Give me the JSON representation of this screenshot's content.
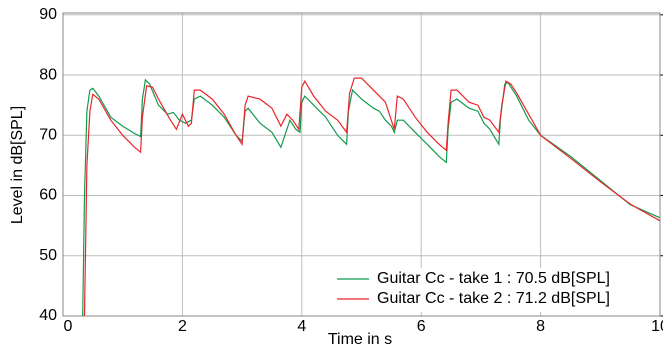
{
  "chart_data": {
    "type": "line",
    "x_label": "Time in s",
    "y_label": "Level in dB[SPL]",
    "xlim": [
      0,
      10
    ],
    "ylim": [
      40,
      90.3
    ],
    "xticks": [
      0,
      2,
      4,
      6,
      8,
      10
    ],
    "yticks": [
      40,
      50,
      60,
      70,
      80,
      90
    ],
    "grid": true,
    "legend": "lower right",
    "series": [
      {
        "name": "Guitar Cc - take 1 : 70.5 dB[SPL]",
        "color": "#139a4e",
        "x": [
          0.33,
          0.36,
          0.4,
          0.45,
          0.5,
          0.6,
          0.8,
          1.0,
          1.2,
          1.3,
          1.33,
          1.38,
          1.45,
          1.6,
          1.75,
          1.85,
          1.95,
          2.05,
          2.15,
          2.2,
          2.3,
          2.5,
          2.7,
          2.9,
          3.0,
          3.05,
          3.1,
          3.3,
          3.5,
          3.65,
          3.75,
          3.8,
          3.9,
          3.97,
          4.0,
          4.05,
          4.2,
          4.4,
          4.6,
          4.7,
          4.75,
          4.78,
          4.85,
          5.0,
          5.2,
          5.3,
          5.4,
          5.5,
          5.55,
          5.6,
          5.7,
          5.9,
          6.1,
          6.3,
          6.42,
          6.45,
          6.5,
          6.6,
          6.8,
          6.95,
          7.05,
          7.15,
          7.3,
          7.33,
          7.4,
          7.45,
          7.6,
          7.8,
          8.0,
          8.5,
          9.0,
          9.5,
          10
        ],
        "values": [
          40,
          60,
          74,
          77.5,
          77.8,
          76.5,
          73,
          71.5,
          70.3,
          69.8,
          76,
          79.2,
          78.5,
          75,
          73.5,
          73.8,
          72.5,
          72,
          72.5,
          76,
          76.5,
          75,
          73,
          70,
          69,
          74,
          74.5,
          72,
          70.5,
          68,
          71,
          72.5,
          71,
          70.5,
          75.5,
          76.5,
          75,
          73,
          70,
          69,
          68.5,
          74,
          77.5,
          76,
          74.5,
          74,
          72.5,
          71.5,
          70.5,
          72.5,
          72.5,
          70.5,
          68.5,
          66.5,
          65.5,
          71,
          75.5,
          76,
          74.5,
          74,
          72,
          71,
          68.5,
          73,
          78.5,
          78.8,
          76.5,
          72.5,
          70,
          66.5,
          62.5,
          58.5,
          56.3
        ]
      },
      {
        "name": "Guitar Cc - take 2 : 71.2 dB[SPL]",
        "color": "#e8262b",
        "x": [
          0.36,
          0.4,
          0.45,
          0.5,
          0.6,
          0.8,
          1.0,
          1.2,
          1.3,
          1.33,
          1.4,
          1.5,
          1.6,
          1.8,
          1.9,
          2.0,
          2.1,
          2.15,
          2.2,
          2.3,
          2.5,
          2.7,
          2.9,
          3.0,
          3.05,
          3.1,
          3.3,
          3.5,
          3.65,
          3.75,
          3.85,
          3.95,
          4.0,
          4.05,
          4.2,
          4.4,
          4.6,
          4.75,
          4.8,
          4.88,
          5.0,
          5.2,
          5.4,
          5.55,
          5.6,
          5.7,
          5.9,
          6.1,
          6.3,
          6.42,
          6.45,
          6.5,
          6.6,
          6.8,
          6.95,
          7.05,
          7.15,
          7.3,
          7.35,
          7.42,
          7.5,
          7.6,
          7.8,
          8.0,
          8.5,
          9.0,
          9.5,
          10
        ],
        "values": [
          40,
          65,
          74,
          76.8,
          76,
          72.5,
          70,
          68,
          67.2,
          73,
          78.2,
          78,
          76,
          72.5,
          71,
          73.5,
          71.5,
          72,
          77.5,
          77.5,
          76,
          73.5,
          70,
          68.5,
          75,
          76.5,
          76,
          74.5,
          71.5,
          73.5,
          72.5,
          71,
          78,
          79,
          76.5,
          74,
          72.5,
          70.5,
          77,
          79.5,
          79.5,
          77.5,
          75.5,
          71,
          76.5,
          76,
          73,
          70.5,
          68.5,
          67.5,
          72,
          77.5,
          77.5,
          75.5,
          75,
          73,
          72.5,
          70.5,
          75,
          79,
          78.5,
          77,
          73.5,
          70,
          66.2,
          62.3,
          58.6,
          55.8
        ]
      }
    ]
  }
}
